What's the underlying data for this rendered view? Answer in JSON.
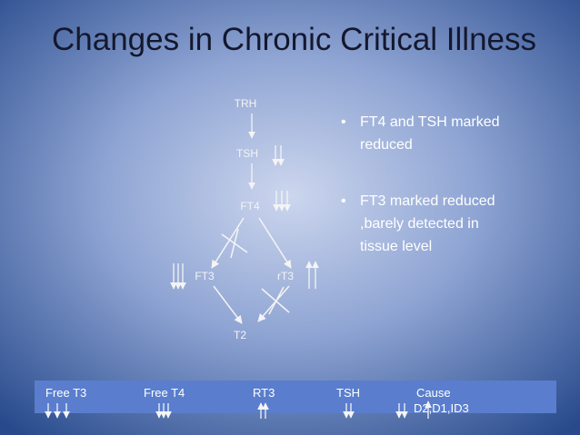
{
  "title": "Changes in Chronic Critical Illness",
  "diagram": {
    "nodes": [
      {
        "label": "TRH"
      },
      {
        "label": "TSH"
      },
      {
        "label": "FT4"
      },
      {
        "label": "FT3"
      },
      {
        "label": "rT3"
      },
      {
        "label": "T2"
      }
    ]
  },
  "bullets": [
    [
      "FT4 and TSH marked",
      "reduced"
    ],
    [
      "FT3 marked reduced",
      ",barely detected in",
      "tissue level"
    ]
  ],
  "table": {
    "header": [
      "Free T3",
      "Free T4",
      "RT3",
      "TSH",
      "Cause"
    ],
    "cause_detail": "D2,D1,ID3"
  }
}
